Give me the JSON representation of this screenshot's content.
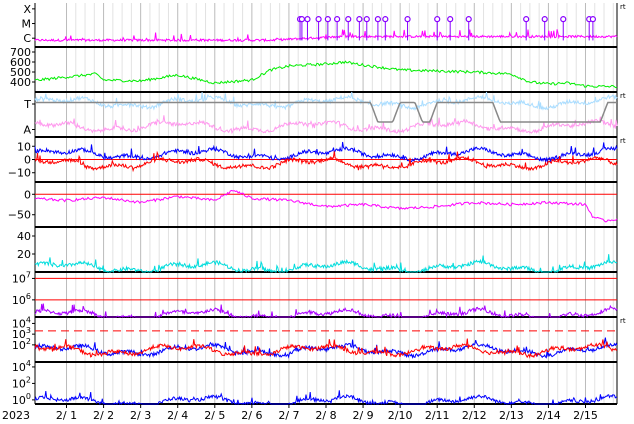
{
  "chart_data": [
    {
      "type": "line",
      "ylim": [
        0,
        3
      ],
      "y_tick_labels": [
        "X",
        "M",
        "C"
      ],
      "y_tick_values": [
        2.6,
        1.6,
        0.6
      ],
      "series": [
        {
          "color": "#ff00ff",
          "baseline": 0.45,
          "rise_from": 0.39,
          "amplitude": 0.9
        }
      ],
      "markers": {
        "color": "#8800ff",
        "y": 1.9,
        "days": [
          7.3,
          7.35,
          7.5,
          7.8,
          8.05,
          8.3,
          8.6,
          8.9,
          9.1,
          9.4,
          9.6,
          10.2,
          11.0,
          11.35,
          11.85,
          13.4,
          13.9,
          14.4,
          15.1,
          15.2
        ]
      },
      "right_label": "rt"
    },
    {
      "type": "line",
      "ylim": [
        300,
        750
      ],
      "y_tick_labels": [
        "700",
        "600",
        "500",
        "400"
      ],
      "y_tick_values": [
        700,
        600,
        500,
        400
      ],
      "series": [
        {
          "color": "#00ee00",
          "points": [
            [
              0,
              410
            ],
            [
              1,
              450
            ],
            [
              1.8,
              480
            ],
            [
              2,
              420
            ],
            [
              3,
              410
            ],
            [
              3.5,
              440
            ],
            [
              4,
              470
            ],
            [
              5,
              390
            ],
            [
              6,
              420
            ],
            [
              6.5,
              520
            ],
            [
              7,
              560
            ],
            [
              7.5,
              570
            ],
            [
              8,
              580
            ],
            [
              8.5,
              600
            ],
            [
              9,
              570
            ],
            [
              10,
              520
            ],
            [
              11,
              510
            ],
            [
              12,
              500
            ],
            [
              13,
              480
            ],
            [
              13.5,
              400
            ],
            [
              14,
              380
            ],
            [
              14.5,
              390
            ],
            [
              15,
              360
            ],
            [
              15.5,
              355
            ]
          ]
        }
      ]
    },
    {
      "type": "line",
      "ylim": [
        0,
        3
      ],
      "y_tick_labels": [
        "T",
        "A"
      ],
      "y_tick_values": [
        2.2,
        0.5
      ],
      "series": [
        {
          "color": "#aaddff",
          "baseline": 2.3
        },
        {
          "color": "#ff99ee",
          "baseline": 0.7
        },
        {
          "color": "#888888",
          "points": [
            [
              0,
              2.3
            ],
            [
              9.2,
              2.3
            ],
            [
              9.4,
              1.0
            ],
            [
              9.8,
              1.0
            ],
            [
              10.0,
              2.3
            ],
            [
              10.4,
              2.3
            ],
            [
              10.6,
              1.0
            ],
            [
              10.8,
              1.0
            ],
            [
              11.0,
              2.3
            ],
            [
              12.5,
              2.3
            ],
            [
              12.7,
              1.0
            ],
            [
              14.6,
              1.0
            ],
            [
              14.8,
              1.0
            ],
            [
              15.4,
              1.0
            ],
            [
              15.6,
              2.3
            ],
            [
              15.9,
              2.3
            ]
          ]
        }
      ],
      "right_label": "rt"
    },
    {
      "type": "line",
      "ylim": [
        -17,
        17
      ],
      "y_tick_labels": [
        "10",
        "0",
        "−10"
      ],
      "y_tick_values": [
        10,
        0,
        -10
      ],
      "series": [
        {
          "color": "#0000ff",
          "baseline": 4
        },
        {
          "color": "#ff0000",
          "baseline": -3
        }
      ],
      "reference_line": {
        "color": "#ff0000",
        "y": 0
      },
      "right_label": "rt"
    },
    {
      "type": "line",
      "ylim": [
        -80,
        30
      ],
      "y_tick_labels": [
        "0",
        "−50"
      ],
      "y_tick_values": [
        0,
        -50
      ],
      "series": [
        {
          "color": "#ff00ff",
          "points": [
            [
              0,
              -10
            ],
            [
              1,
              -15
            ],
            [
              2,
              -8
            ],
            [
              3,
              -20
            ],
            [
              4,
              -5
            ],
            [
              5,
              -15
            ],
            [
              5.5,
              10
            ],
            [
              6,
              -10
            ],
            [
              7,
              -15
            ],
            [
              8,
              -30
            ],
            [
              9,
              -25
            ],
            [
              10,
              -35
            ],
            [
              11,
              -30
            ],
            [
              12,
              -20
            ],
            [
              13,
              -25
            ],
            [
              14,
              -20
            ],
            [
              15,
              -25
            ],
            [
              15.2,
              -55
            ],
            [
              15.5,
              -65
            ],
            [
              15.9,
              -60
            ]
          ]
        }
      ],
      "reference_line": {
        "color": "#ff0000",
        "y": 0
      }
    },
    {
      "type": "line",
      "ylim": [
        0,
        50
      ],
      "y_tick_labels": [
        "40",
        "20"
      ],
      "y_tick_values": [
        40,
        20
      ],
      "series": [
        {
          "color": "#00dddd",
          "baseline": 5
        }
      ]
    },
    {
      "type": "line",
      "ylim": [
        5.2,
        7.3
      ],
      "y_scale": "log",
      "y_tick_labels": [
        "10^7",
        "10^6"
      ],
      "y_tick_values": [
        7,
        6
      ],
      "series": [
        {
          "color": "#aa00ff",
          "baseline": 5.3
        }
      ],
      "reference_lines": [
        {
          "color": "#ff0000",
          "y": 7
        },
        {
          "color": "#ff0000",
          "y": 6
        }
      ]
    },
    {
      "type": "line",
      "ylim": [
        0.4,
        4.6
      ],
      "y_scale": "log",
      "y_tick_labels": [
        "10^4",
        "10^3",
        "10^2"
      ],
      "y_tick_values": [
        4,
        3,
        2
      ],
      "series": [
        {
          "color": "#0000ff",
          "baseline": 1.5
        },
        {
          "color": "#ff0000",
          "baseline": 1.5
        }
      ],
      "reference_line": {
        "color": "#ff0000",
        "y": 3.3,
        "style": "dashed"
      },
      "right_label": "rt"
    },
    {
      "type": "line",
      "ylim": [
        -0.5,
        4.6
      ],
      "y_scale": "log",
      "y_tick_labels": [
        "10^4",
        "10^2",
        "10^0"
      ],
      "y_tick_values": [
        4,
        2,
        0
      ],
      "series": [
        {
          "color": "#0000ff",
          "baseline": -0.2
        }
      ]
    }
  ],
  "x_axis": {
    "year": "2023",
    "labels": [
      "2/ 1",
      "2/ 2",
      "2/ 3",
      "2/ 4",
      "2/ 5",
      "2/ 6",
      "2/ 7",
      "2/ 8",
      "2/ 9",
      "2/10",
      "2/11",
      "2/12",
      "2/13",
      "2/14",
      "2/15"
    ],
    "day_values": [
      1,
      2,
      3,
      4,
      5,
      6,
      7,
      8,
      9,
      10,
      11,
      12,
      13,
      14,
      15
    ],
    "xlim": [
      0.15,
      15.85
    ]
  }
}
